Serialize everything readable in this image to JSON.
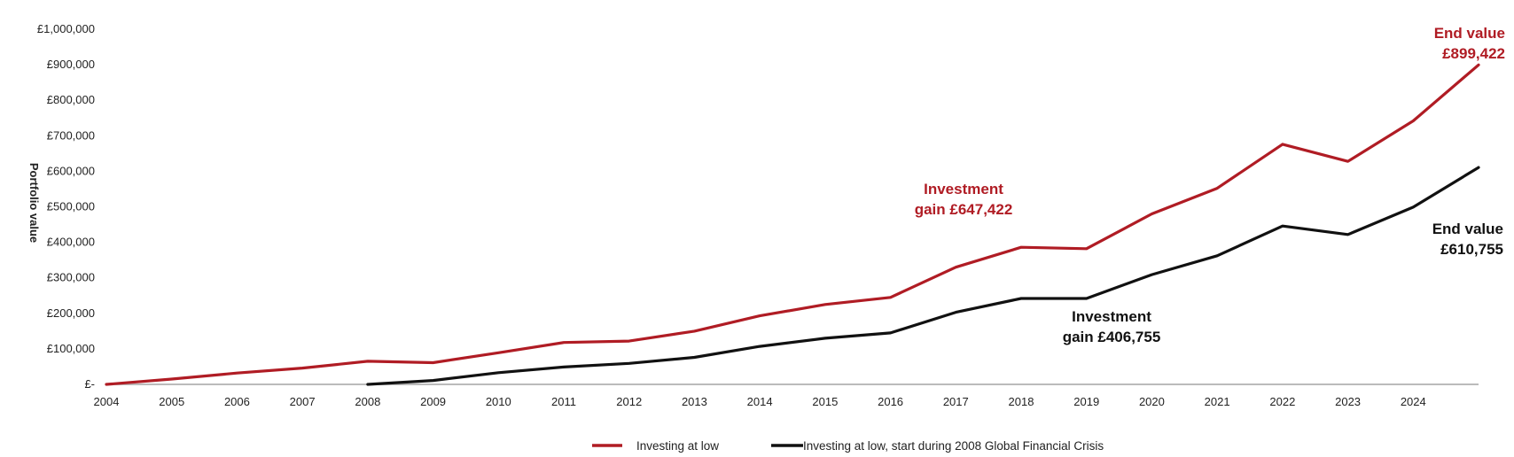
{
  "chart_data": {
    "type": "line",
    "title": "",
    "ylabel": "Portfolio value",
    "xlabel": "",
    "x": [
      2004,
      2005,
      2006,
      2007,
      2008,
      2009,
      2010,
      2011,
      2012,
      2013,
      2014,
      2015,
      2016,
      2017,
      2018,
      2019,
      2020,
      2021,
      2022,
      2023,
      2024,
      2025
    ],
    "x_tick_labels": [
      "2004",
      "2005",
      "2006",
      "2007",
      "2008",
      "2009",
      "2010",
      "2011",
      "2012",
      "2013",
      "2014",
      "2015",
      "2016",
      "2017",
      "2018",
      "2019",
      "2020",
      "2021",
      "2022",
      "2023",
      "2024"
    ],
    "y_tick_values": [
      0,
      100000,
      200000,
      300000,
      400000,
      500000,
      600000,
      700000,
      800000,
      900000,
      1000000
    ],
    "y_tick_labels": [
      "£-",
      "£100,000",
      "£200,000",
      "£300,000",
      "£400,000",
      "£500,000",
      "£600,000",
      "£700,000",
      "£800,000",
      "£900,000",
      "£1,000,000"
    ],
    "ylim": [
      0,
      1000000
    ],
    "xlim": [
      2004,
      2025
    ],
    "grid": false,
    "legend_position": "bottom",
    "series": [
      {
        "name": "Investing at low",
        "color": "#b01c24",
        "x": [
          2004,
          2005,
          2006,
          2007,
          2008,
          2009,
          2010,
          2011,
          2012,
          2013,
          2014,
          2015,
          2016,
          2017,
          2018,
          2019,
          2020,
          2021,
          2022,
          2023,
          2024,
          2025
        ],
        "values": [
          0,
          15000,
          32000,
          46000,
          65000,
          61000,
          89000,
          118000,
          122000,
          150000,
          193000,
          225000,
          245000,
          330000,
          386000,
          382000,
          480000,
          552000,
          676000,
          628000,
          742000,
          899422
        ]
      },
      {
        "name": "Investing at low, start during 2008 Global Financial Crisis",
        "color": "#111111",
        "x": [
          2008,
          2009,
          2010,
          2011,
          2012,
          2013,
          2014,
          2015,
          2016,
          2017,
          2018,
          2019,
          2020,
          2021,
          2022,
          2023,
          2024,
          2025
        ],
        "values": [
          0,
          11000,
          33000,
          49000,
          59000,
          76000,
          107000,
          130000,
          145000,
          203000,
          242000,
          242000,
          309000,
          362000,
          446000,
          422000,
          499000,
          610755
        ]
      }
    ],
    "annotations": [
      {
        "lines": [
          "End value",
          "£899,422"
        ],
        "color": "#b01c24"
      },
      {
        "lines": [
          "Investment",
          "gain £647,422"
        ],
        "color": "#b01c24"
      },
      {
        "lines": [
          "End value",
          "£610,755"
        ],
        "color": "#111111"
      },
      {
        "lines": [
          "Investment",
          "gain £406,755"
        ],
        "color": "#111111"
      }
    ]
  }
}
